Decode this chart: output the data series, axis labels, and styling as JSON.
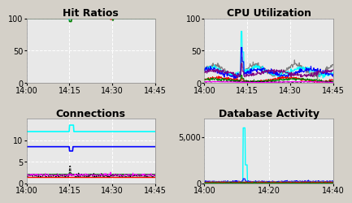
{
  "fig_bg": "#d4d0c8",
  "plot_bg": "#e8e8e8",
  "grid_color": "#ffffff",
  "grid_style": "--",
  "title_fontsize": 9,
  "tick_fontsize": 7,
  "titles": [
    "Hit Ratios",
    "CPU Utilization",
    "Connections",
    "Database Activity"
  ],
  "xtick_labels_top": [
    "14:00",
    "14:15",
    "14:30",
    "14:45"
  ],
  "xtick_labels_bottom_left": [
    "14:00",
    "14:15",
    "14:30",
    "14:45"
  ],
  "xtick_labels_bottom_right": [
    "14:00",
    "14:20",
    "14:40"
  ],
  "ylim_hit": [
    0,
    100
  ],
  "ylim_cpu": [
    0,
    100
  ],
  "ylim_conn": [
    0,
    15
  ],
  "ylim_db": [
    0,
    7000
  ]
}
